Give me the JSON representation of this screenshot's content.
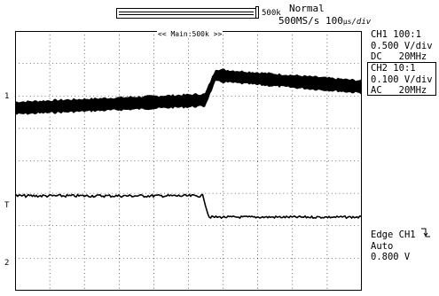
{
  "acquisition": {
    "record_length": "500k",
    "mode": "Normal",
    "sample_rate": "500MS/s",
    "timebase_value": "100",
    "timebase_unit": "µs",
    "timebase_div": "div"
  },
  "zoom_label": "<< Main:500k >>",
  "channels": [
    {
      "name": "CH1",
      "probe": "100:1",
      "scale": "0.500 V/div",
      "coupling": "DC",
      "bandwidth": "20MHz",
      "marker": "1"
    },
    {
      "name": "CH2",
      "probe": "10:1",
      "scale": "0.100 V/div",
      "coupling": "AC",
      "bandwidth": "20MHz",
      "marker": "2"
    }
  ],
  "trigger": {
    "type": "Edge",
    "source": "CH1",
    "mode": "Auto",
    "level": "0.800 V",
    "marker": "T"
  },
  "markers": {
    "ch1_ground": "1",
    "ch2_ground": "2",
    "trigger_level": "T"
  },
  "colors": {
    "background": "#ffffff",
    "trace": "#000000",
    "grid": "#000000"
  }
}
